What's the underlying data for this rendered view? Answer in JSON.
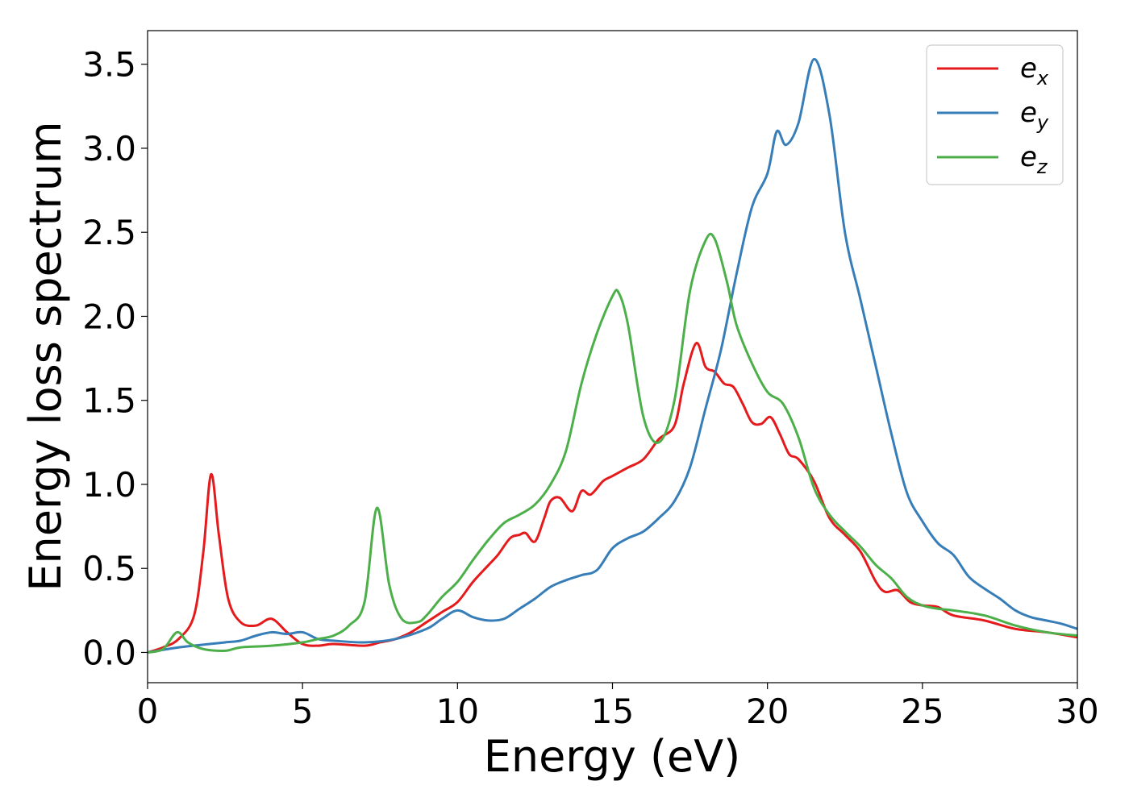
{
  "chart_data": {
    "type": "line",
    "xlabel": "Energy (eV)",
    "ylabel": "Energy loss spectrum",
    "xlim": [
      0,
      30
    ],
    "ylim": [
      -0.18,
      3.7
    ],
    "xticks": [
      0,
      5,
      10,
      15,
      20,
      25,
      30
    ],
    "yticks": [
      0.0,
      0.5,
      1.0,
      1.5,
      2.0,
      2.5,
      3.0,
      3.5
    ],
    "xtick_labels": [
      "0",
      "5",
      "10",
      "15",
      "20",
      "25",
      "30"
    ],
    "ytick_labels": [
      "0.0",
      "0.5",
      "1.0",
      "1.5",
      "2.0",
      "2.5",
      "3.0",
      "3.5"
    ],
    "grid": false,
    "legend_position": "top-right",
    "series": [
      {
        "name": "e",
        "subscript": "x",
        "color": "#e41a1c",
        "points": [
          [
            0,
            0
          ],
          [
            0.5,
            0.03
          ],
          [
            1.0,
            0.08
          ],
          [
            1.5,
            0.22
          ],
          [
            1.8,
            0.6
          ],
          [
            2.05,
            1.06
          ],
          [
            2.3,
            0.7
          ],
          [
            2.6,
            0.32
          ],
          [
            3.0,
            0.18
          ],
          [
            3.5,
            0.16
          ],
          [
            4.0,
            0.2
          ],
          [
            4.5,
            0.12
          ],
          [
            5.0,
            0.05
          ],
          [
            5.5,
            0.04
          ],
          [
            6.0,
            0.05
          ],
          [
            7.0,
            0.04
          ],
          [
            7.5,
            0.06
          ],
          [
            8.0,
            0.08
          ],
          [
            8.5,
            0.12
          ],
          [
            9.0,
            0.18
          ],
          [
            9.5,
            0.24
          ],
          [
            10.0,
            0.3
          ],
          [
            10.5,
            0.42
          ],
          [
            11.0,
            0.52
          ],
          [
            11.3,
            0.58
          ],
          [
            11.7,
            0.68
          ],
          [
            12.0,
            0.7
          ],
          [
            12.2,
            0.71
          ],
          [
            12.5,
            0.66
          ],
          [
            12.8,
            0.8
          ],
          [
            13.0,
            0.9
          ],
          [
            13.3,
            0.92
          ],
          [
            13.7,
            0.84
          ],
          [
            14.0,
            0.96
          ],
          [
            14.3,
            0.94
          ],
          [
            14.7,
            1.02
          ],
          [
            15.0,
            1.05
          ],
          [
            15.5,
            1.1
          ],
          [
            16.0,
            1.15
          ],
          [
            16.5,
            1.27
          ],
          [
            17.0,
            1.35
          ],
          [
            17.3,
            1.6
          ],
          [
            17.7,
            1.84
          ],
          [
            18.0,
            1.7
          ],
          [
            18.3,
            1.67
          ],
          [
            18.6,
            1.6
          ],
          [
            18.9,
            1.58
          ],
          [
            19.2,
            1.48
          ],
          [
            19.5,
            1.37
          ],
          [
            19.8,
            1.36
          ],
          [
            20.1,
            1.4
          ],
          [
            20.4,
            1.3
          ],
          [
            20.7,
            1.18
          ],
          [
            21.0,
            1.15
          ],
          [
            21.5,
            1.02
          ],
          [
            22.0,
            0.8
          ],
          [
            22.5,
            0.7
          ],
          [
            23.0,
            0.6
          ],
          [
            23.5,
            0.42
          ],
          [
            23.8,
            0.36
          ],
          [
            24.2,
            0.37
          ],
          [
            24.6,
            0.3
          ],
          [
            25.0,
            0.28
          ],
          [
            25.5,
            0.27
          ],
          [
            26.0,
            0.22
          ],
          [
            27.0,
            0.19
          ],
          [
            28.0,
            0.14
          ],
          [
            29.0,
            0.12
          ],
          [
            30.0,
            0.09
          ]
        ]
      },
      {
        "name": "e",
        "subscript": "y",
        "color": "#377eb8",
        "points": [
          [
            0,
            0
          ],
          [
            1.0,
            0.03
          ],
          [
            2.0,
            0.05
          ],
          [
            2.5,
            0.06
          ],
          [
            3.0,
            0.07
          ],
          [
            3.5,
            0.1
          ],
          [
            4.0,
            0.12
          ],
          [
            4.5,
            0.11
          ],
          [
            5.0,
            0.12
          ],
          [
            5.5,
            0.08
          ],
          [
            6.0,
            0.07
          ],
          [
            7.0,
            0.06
          ],
          [
            8.0,
            0.08
          ],
          [
            9.0,
            0.14
          ],
          [
            9.5,
            0.2
          ],
          [
            10.0,
            0.25
          ],
          [
            10.5,
            0.21
          ],
          [
            11.0,
            0.19
          ],
          [
            11.5,
            0.2
          ],
          [
            12.0,
            0.26
          ],
          [
            12.5,
            0.32
          ],
          [
            13.0,
            0.39
          ],
          [
            13.5,
            0.43
          ],
          [
            14.0,
            0.46
          ],
          [
            14.5,
            0.49
          ],
          [
            15.0,
            0.62
          ],
          [
            15.5,
            0.68
          ],
          [
            16.0,
            0.72
          ],
          [
            16.5,
            0.8
          ],
          [
            17.0,
            0.9
          ],
          [
            17.5,
            1.1
          ],
          [
            18.0,
            1.45
          ],
          [
            18.5,
            1.8
          ],
          [
            19.0,
            2.25
          ],
          [
            19.5,
            2.65
          ],
          [
            20.0,
            2.85
          ],
          [
            20.3,
            3.1
          ],
          [
            20.6,
            3.02
          ],
          [
            21.0,
            3.15
          ],
          [
            21.5,
            3.53
          ],
          [
            22.0,
            3.2
          ],
          [
            22.5,
            2.5
          ],
          [
            23.0,
            2.1
          ],
          [
            23.5,
            1.7
          ],
          [
            24.0,
            1.3
          ],
          [
            24.5,
            0.95
          ],
          [
            25.0,
            0.78
          ],
          [
            25.5,
            0.65
          ],
          [
            26.0,
            0.58
          ],
          [
            26.5,
            0.45
          ],
          [
            27.0,
            0.38
          ],
          [
            27.5,
            0.32
          ],
          [
            28.0,
            0.25
          ],
          [
            28.5,
            0.21
          ],
          [
            29.0,
            0.19
          ],
          [
            29.5,
            0.17
          ],
          [
            30.0,
            0.14
          ]
        ]
      },
      {
        "name": "e",
        "subscript": "z",
        "color": "#4daf4a",
        "points": [
          [
            0,
            0
          ],
          [
            0.5,
            0.02
          ],
          [
            0.95,
            0.12
          ],
          [
            1.3,
            0.06
          ],
          [
            1.8,
            0.02
          ],
          [
            2.5,
            0.01
          ],
          [
            3.0,
            0.03
          ],
          [
            4.0,
            0.04
          ],
          [
            5.0,
            0.06
          ],
          [
            5.5,
            0.08
          ],
          [
            6.0,
            0.1
          ],
          [
            6.5,
            0.16
          ],
          [
            7.0,
            0.3
          ],
          [
            7.4,
            0.86
          ],
          [
            7.8,
            0.4
          ],
          [
            8.2,
            0.2
          ],
          [
            8.7,
            0.18
          ],
          [
            9.0,
            0.22
          ],
          [
            9.5,
            0.33
          ],
          [
            10.0,
            0.42
          ],
          [
            10.5,
            0.55
          ],
          [
            11.0,
            0.67
          ],
          [
            11.5,
            0.77
          ],
          [
            12.0,
            0.82
          ],
          [
            12.5,
            0.88
          ],
          [
            13.0,
            1.0
          ],
          [
            13.5,
            1.2
          ],
          [
            14.0,
            1.6
          ],
          [
            14.5,
            1.9
          ],
          [
            15.0,
            2.12
          ],
          [
            15.2,
            2.14
          ],
          [
            15.5,
            1.95
          ],
          [
            16.0,
            1.4
          ],
          [
            16.5,
            1.25
          ],
          [
            17.0,
            1.5
          ],
          [
            17.5,
            2.15
          ],
          [
            18.0,
            2.45
          ],
          [
            18.3,
            2.46
          ],
          [
            18.7,
            2.2
          ],
          [
            19.0,
            1.95
          ],
          [
            19.5,
            1.72
          ],
          [
            20.0,
            1.55
          ],
          [
            20.5,
            1.48
          ],
          [
            21.0,
            1.28
          ],
          [
            21.5,
            0.98
          ],
          [
            22.0,
            0.82
          ],
          [
            22.5,
            0.72
          ],
          [
            23.0,
            0.63
          ],
          [
            23.5,
            0.52
          ],
          [
            24.0,
            0.44
          ],
          [
            24.5,
            0.33
          ],
          [
            25.0,
            0.28
          ],
          [
            25.5,
            0.26
          ],
          [
            26.0,
            0.25
          ],
          [
            27.0,
            0.22
          ],
          [
            28.0,
            0.16
          ],
          [
            29.0,
            0.12
          ],
          [
            30.0,
            0.1
          ]
        ]
      }
    ]
  }
}
